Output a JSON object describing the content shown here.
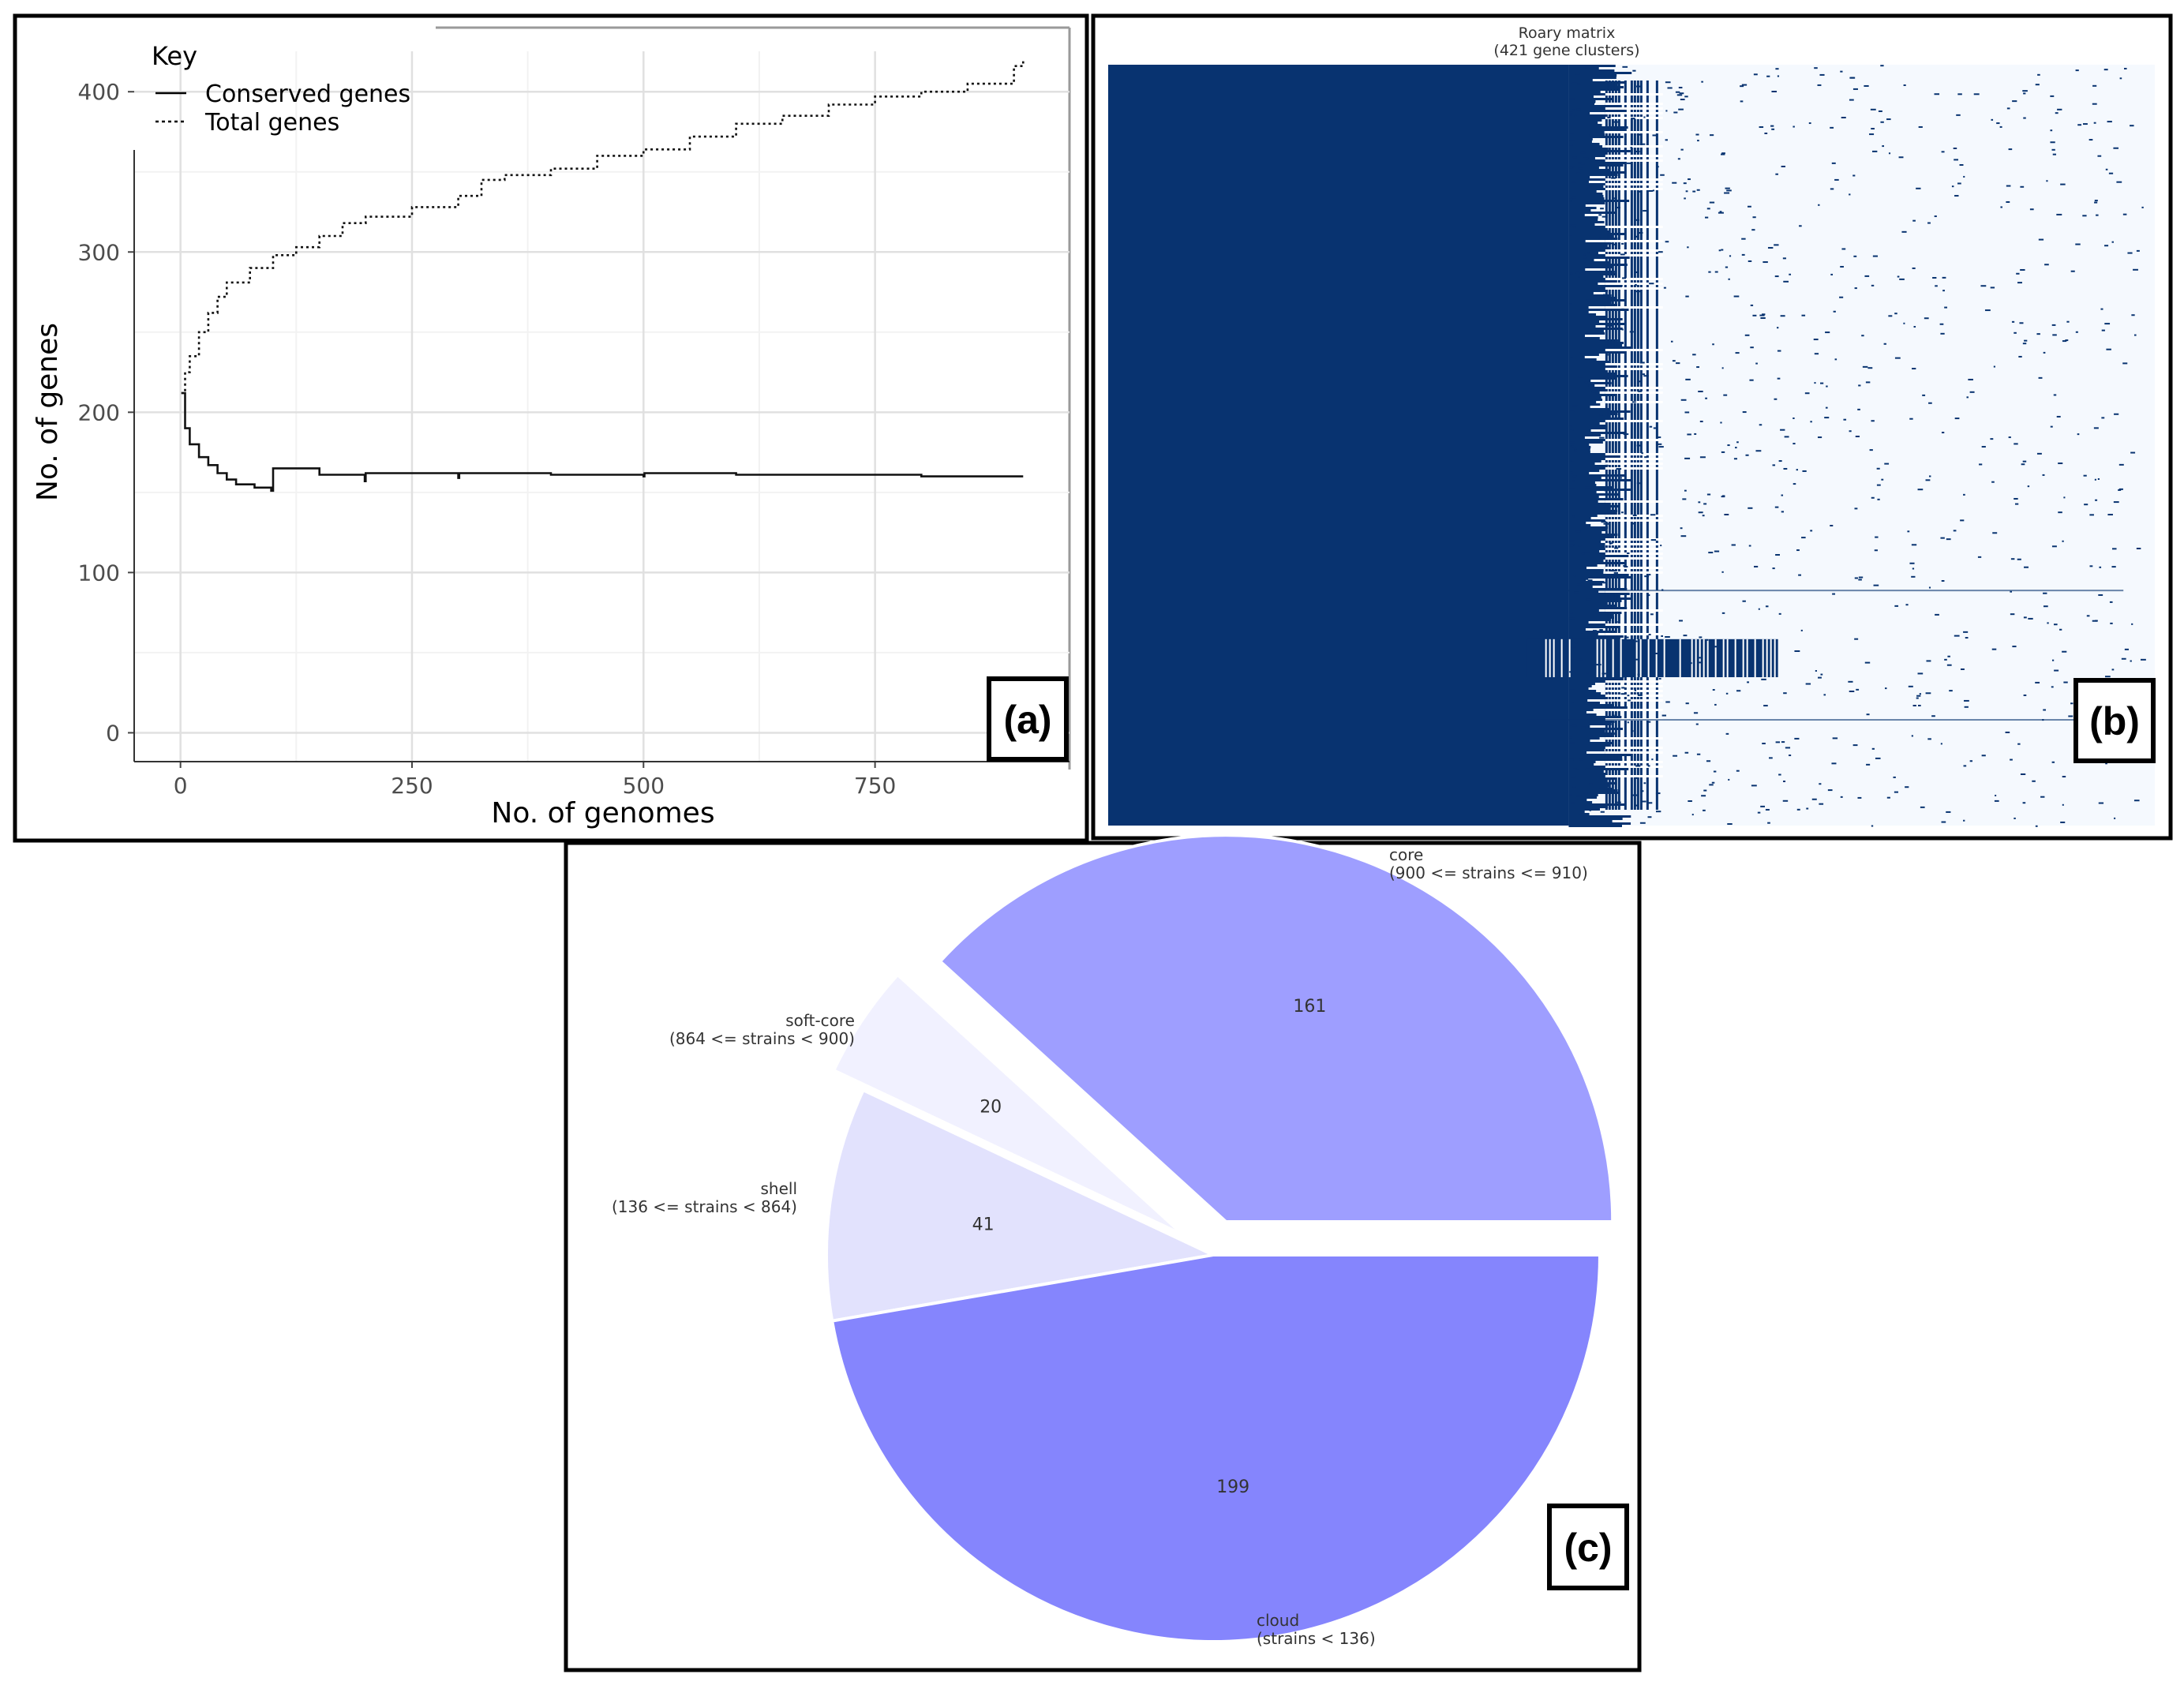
{
  "chart_data": [
    {
      "panel": "a",
      "type": "line",
      "tag": "(a)",
      "xlabel": "No. of genomes",
      "ylabel": "No. of genes",
      "xlim": [
        -50,
        960
      ],
      "ylim": [
        -18,
        440
      ],
      "x_ticks": [
        0,
        250,
        500,
        750
      ],
      "y_ticks": [
        0,
        100,
        200,
        300,
        400
      ],
      "grid": true,
      "legend": {
        "title": "Key",
        "position": "top-left"
      },
      "series": [
        {
          "name": "Conserved genes",
          "style": "solid",
          "x": [
            1,
            5,
            10,
            20,
            30,
            40,
            50,
            60,
            80,
            98,
            100,
            150,
            199,
            200,
            300,
            301,
            400,
            500,
            501,
            600,
            700,
            800,
            910
          ],
          "y": [
            212,
            190,
            180,
            172,
            167,
            162,
            158,
            155,
            153,
            151,
            165,
            161,
            157,
            162,
            159,
            162,
            161,
            160,
            162,
            161,
            161,
            160,
            160
          ]
        },
        {
          "name": "Total genes",
          "style": "dotted",
          "x": [
            1,
            5,
            10,
            20,
            30,
            40,
            50,
            75,
            100,
            125,
            150,
            175,
            200,
            250,
            300,
            325,
            350,
            400,
            450,
            500,
            550,
            600,
            650,
            700,
            750,
            800,
            850,
            900,
            910
          ],
          "y": [
            212,
            225,
            235,
            250,
            262,
            272,
            281,
            290,
            298,
            303,
            310,
            318,
            322,
            328,
            335,
            345,
            348,
            352,
            360,
            364,
            372,
            380,
            385,
            392,
            397,
            400,
            405,
            416,
            419
          ]
        }
      ]
    },
    {
      "panel": "b",
      "type": "heatmap",
      "tag": "(b)",
      "title": "Roary matrix",
      "subtitle": "(421 gene clusters)",
      "colors": {
        "present": "#083370",
        "absent": "#f5f9fe",
        "mixed": "#ffffff"
      }
    },
    {
      "panel": "c",
      "type": "pie",
      "tag": "(c)",
      "slices": [
        {
          "name": "core",
          "range": "(900 <= strains <= 910)",
          "value": 161,
          "color": "#9e9eff",
          "exploded": true
        },
        {
          "name": "soft-core",
          "range": "(864 <= strains < 900)",
          "value": 20,
          "color": "#f1f1ff",
          "exploded": true
        },
        {
          "name": "shell",
          "range": "(136 <= strains < 864)",
          "value": 41,
          "color": "#e2e2fd",
          "exploded": false
        },
        {
          "name": "cloud",
          "range": "(strains < 136)",
          "value": 199,
          "color": "#8585fd",
          "exploded": false
        }
      ]
    }
  ]
}
